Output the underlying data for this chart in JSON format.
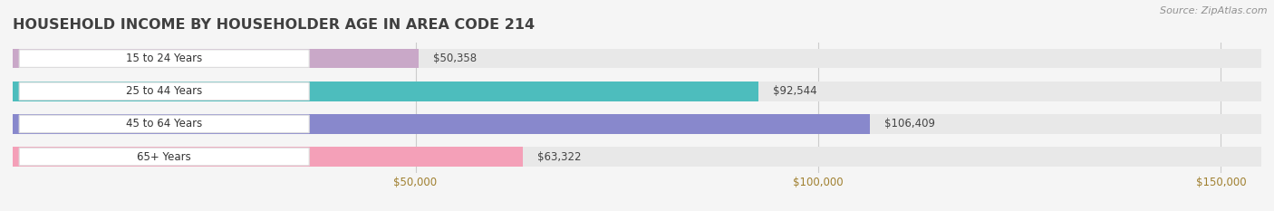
{
  "title": "HOUSEHOLD INCOME BY HOUSEHOLDER AGE IN AREA CODE 214",
  "source": "Source: ZipAtlas.com",
  "categories": [
    "15 to 24 Years",
    "25 to 44 Years",
    "45 to 64 Years",
    "65+ Years"
  ],
  "values": [
    50358,
    92544,
    106409,
    63322
  ],
  "bar_colors": [
    "#c9a8c8",
    "#4dbdbd",
    "#8888cc",
    "#f4a0b8"
  ],
  "value_labels": [
    "$50,358",
    "$92,544",
    "$106,409",
    "$63,322"
  ],
  "x_max": 155000,
  "xticks": [
    50000,
    100000,
    150000
  ],
  "xtick_labels": [
    "$50,000",
    "$100,000",
    "$150,000"
  ],
  "background_color": "#f5f5f5",
  "bar_bg_color": "#e8e8e8",
  "title_color": "#404040",
  "tick_color": "#a08030",
  "source_color": "#909090",
  "grid_color": "#cccccc"
}
